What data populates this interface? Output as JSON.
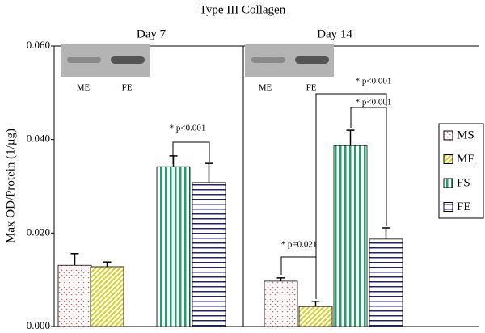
{
  "chart_data": {
    "type": "bar",
    "title": "Type III Collagen",
    "y_label": "Max OD/Protein (1/µg)",
    "categories": [
      "Day 7",
      "Day 14"
    ],
    "series": [
      {
        "name": "MS",
        "color": "#e06060",
        "pattern": "dots",
        "values": [
          0.0131,
          0.0097
        ],
        "errors": [
          0.0025,
          0.0007
        ]
      },
      {
        "name": "ME",
        "color": "#d8d020",
        "pattern": "diagonal",
        "values": [
          0.0128,
          0.0043
        ],
        "errors": [
          0.001,
          0.0011
        ]
      },
      {
        "name": "FS",
        "color": "#2a9a6a",
        "pattern": "vertical",
        "values": [
          0.0342,
          0.0387
        ],
        "errors": [
          0.0023,
          0.0033
        ]
      },
      {
        "name": "FE",
        "color": "#22226e",
        "pattern": "horizontal",
        "values": [
          0.0308,
          0.0187
        ],
        "errors": [
          0.0041,
          0.0024
        ]
      }
    ],
    "ylim": [
      0,
      0.06
    ],
    "yticks": [
      {
        "value": 0,
        "label": "0.000"
      },
      {
        "value": 0.02,
        "label": "0.020"
      },
      {
        "value": 0.04,
        "label": "0.040"
      },
      {
        "value": 0.06,
        "label": "0.060"
      }
    ],
    "grid": false,
    "legend": "right",
    "annotations": [
      "* p<0.001",
      "* p=0.021",
      "* p<0.001",
      "* p<0.001"
    ],
    "gel_labels": [
      [
        "ME",
        "FE"
      ],
      [
        "ME",
        "FE"
      ]
    ]
  }
}
